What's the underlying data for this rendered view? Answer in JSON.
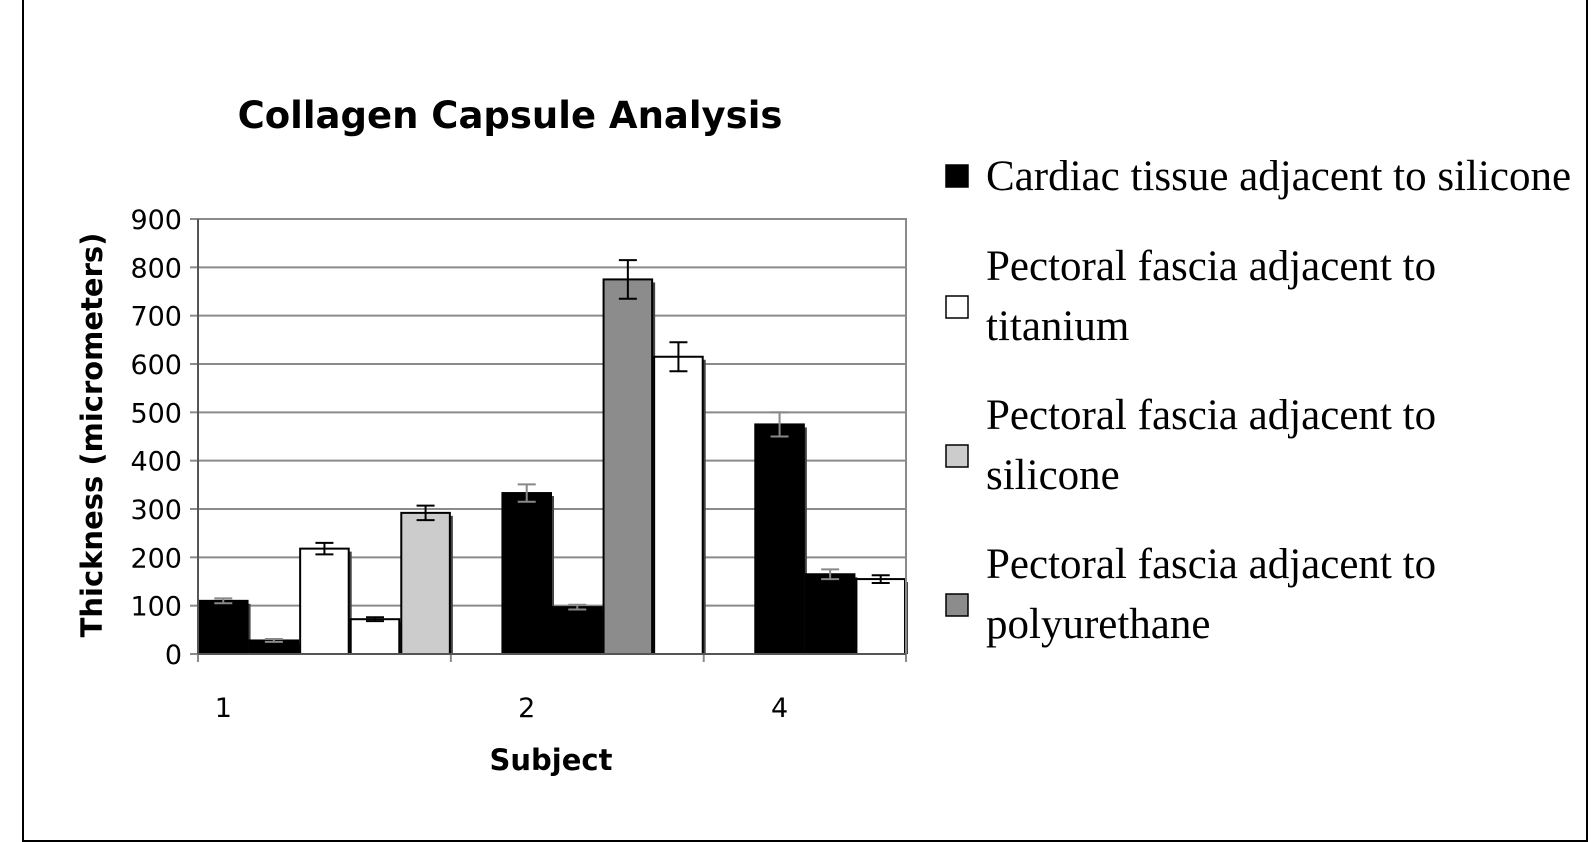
{
  "chart_data": {
    "type": "bar",
    "title": "Collagen Capsule Analysis",
    "xlabel": "Subject",
    "ylabel": "Thickness (micrometers)",
    "ylim": [
      0,
      900
    ],
    "yticks": [
      "0",
      "100",
      "200",
      "300",
      "400",
      "500",
      "600",
      "700",
      "800",
      "900"
    ],
    "grid": true,
    "legend_position": "right",
    "category_labels": [
      "1",
      "2",
      "4"
    ],
    "bars": [
      {
        "category": "1",
        "value": 110,
        "error": 5,
        "color": "#000000"
      },
      {
        "category": "1",
        "value": 28,
        "error": 3,
        "color": "#000000"
      },
      {
        "category": "1",
        "value": 218,
        "error": 12,
        "color": "#ffffff"
      },
      {
        "category": "1",
        "value": 72,
        "error": 4,
        "color": "#ffffff"
      },
      {
        "category": "1",
        "value": 292,
        "error": 15,
        "color": "#cccccc"
      },
      {
        "category": "2",
        "value": 333,
        "error": 18,
        "color": "#000000"
      },
      {
        "category": "2",
        "value": 97,
        "error": 5,
        "color": "#000000"
      },
      {
        "category": "2",
        "value": 775,
        "error": 40,
        "color": "#8c8c8c"
      },
      {
        "category": "2",
        "value": 615,
        "error": 30,
        "color": "#ffffff"
      },
      {
        "category": "4",
        "value": 475,
        "error": 25,
        "color": "#000000"
      },
      {
        "category": "4",
        "value": 165,
        "error": 10,
        "color": "#000000"
      },
      {
        "category": "4",
        "value": 155,
        "error": 8,
        "color": "#ffffff"
      }
    ],
    "legend": [
      {
        "lines": [
          "Cardiac tissue adjacent to silicone"
        ],
        "color": "#000000"
      },
      {
        "lines": [
          "Pectoral fascia adjacent to",
          "titanium"
        ],
        "color": "#ffffff"
      },
      {
        "lines": [
          "Pectoral fascia adjacent to",
          "silicone"
        ],
        "color": "#cccccc"
      },
      {
        "lines": [
          "Pectoral fascia adjacent to",
          "polyurethane"
        ],
        "color": "#8c8c8c"
      }
    ]
  }
}
